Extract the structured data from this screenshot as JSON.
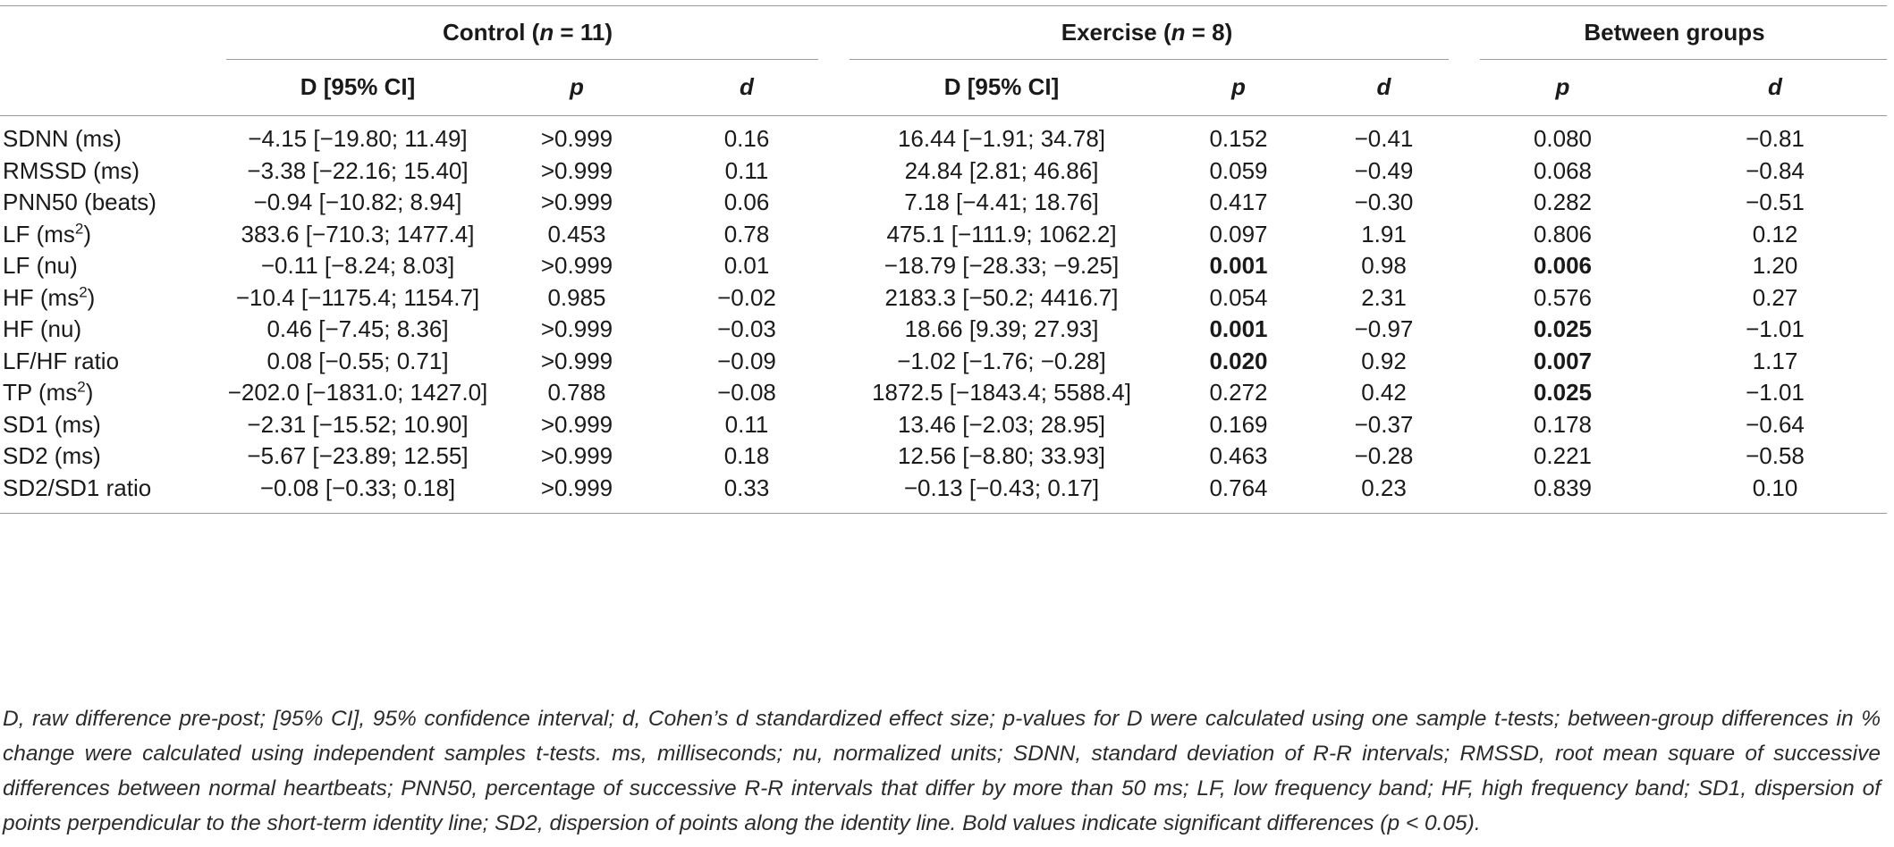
{
  "table": {
    "groups": [
      {
        "label": "Control",
        "n_label": "n",
        "n_value": " = 11"
      },
      {
        "label": "Exercise",
        "n_label": "n",
        "n_value": " = 8"
      },
      {
        "label": "Between groups"
      }
    ],
    "subheaders": {
      "ci": "D [95% CI]",
      "p": "p",
      "d": "d"
    },
    "rows": [
      {
        "label": "SDNN (ms)",
        "label_sup": "",
        "label_suffix": "",
        "ctrl_ci": "−4.15 [−19.80; 11.49]",
        "ctrl_p": ">0.999",
        "ctrl_d": "0.16",
        "ex_ci": "16.44 [−1.91; 34.78]",
        "ex_p": "0.152",
        "ex_d": "−0.41",
        "bg_p": "0.080",
        "bg_d": "−0.81"
      },
      {
        "label": "RMSSD (ms)",
        "label_sup": "",
        "label_suffix": "",
        "ctrl_ci": "−3.38 [−22.16; 15.40]",
        "ctrl_p": ">0.999",
        "ctrl_d": "0.11",
        "ex_ci": "24.84 [2.81; 46.86]",
        "ex_p": "0.059",
        "ex_d": "−0.49",
        "bg_p": "0.068",
        "bg_d": "−0.84"
      },
      {
        "label": "PNN50 (beats)",
        "label_sup": "",
        "label_suffix": "",
        "ctrl_ci": "−0.94 [−10.82; 8.94]",
        "ctrl_p": ">0.999",
        "ctrl_d": "0.06",
        "ex_ci": "7.18 [−4.41; 18.76]",
        "ex_p": "0.417",
        "ex_d": "−0.30",
        "bg_p": "0.282",
        "bg_d": "−0.51"
      },
      {
        "label": "LF (ms",
        "label_sup": "2",
        "label_suffix": ")",
        "ctrl_ci": "383.6 [−710.3; 1477.4]",
        "ctrl_p": "0.453",
        "ctrl_d": "0.78",
        "ex_ci": "475.1 [−111.9; 1062.2]",
        "ex_p": "0.097",
        "ex_d": "1.91",
        "bg_p": "0.806",
        "bg_d": "0.12"
      },
      {
        "label": "LF (nu)",
        "label_sup": "",
        "label_suffix": "",
        "ctrl_ci": "−0.11 [−8.24; 8.03]",
        "ctrl_p": ">0.999",
        "ctrl_d": "0.01",
        "ex_ci": "−18.79 [−28.33; −9.25]",
        "ex_p": "0.001",
        "ex_d": "0.98",
        "bg_p": "0.006",
        "bg_d": "1.20",
        "bold": [
          "ex_p",
          "bg_p"
        ]
      },
      {
        "label": "HF (ms",
        "label_sup": "2",
        "label_suffix": ")",
        "ctrl_ci": "−10.4 [−1175.4; 1154.7]",
        "ctrl_p": "0.985",
        "ctrl_d": "−0.02",
        "ex_ci": "2183.3 [−50.2; 4416.7]",
        "ex_p": "0.054",
        "ex_d": "2.31",
        "bg_p": "0.576",
        "bg_d": "0.27"
      },
      {
        "label": "HF (nu)",
        "label_sup": "",
        "label_suffix": "",
        "ctrl_ci": "0.46 [−7.45; 8.36]",
        "ctrl_p": ">0.999",
        "ctrl_d": "−0.03",
        "ex_ci": "18.66 [9.39; 27.93]",
        "ex_p": "0.001",
        "ex_d": "−0.97",
        "bg_p": "0.025",
        "bg_d": "−1.01",
        "bold": [
          "ex_p",
          "bg_p"
        ]
      },
      {
        "label": "LF/HF ratio",
        "label_sup": "",
        "label_suffix": "",
        "ctrl_ci": "0.08 [−0.55; 0.71]",
        "ctrl_p": ">0.999",
        "ctrl_d": "−0.09",
        "ex_ci": "−1.02 [−1.76; −0.28]",
        "ex_p": "0.020",
        "ex_d": "0.92",
        "bg_p": "0.007",
        "bg_d": "1.17",
        "bold": [
          "ex_p",
          "bg_p"
        ]
      },
      {
        "label": "TP (ms",
        "label_sup": "2",
        "label_suffix": ")",
        "ctrl_ci": "−202.0 [−1831.0; 1427.0]",
        "ctrl_p": "0.788",
        "ctrl_d": "−0.08",
        "ex_ci": "1872.5 [−1843.4; 5588.4]",
        "ex_p": "0.272",
        "ex_d": "0.42",
        "bg_p": "0.025",
        "bg_d": "−1.01",
        "bold": [
          "bg_p"
        ]
      },
      {
        "label": "SD1 (ms)",
        "label_sup": "",
        "label_suffix": "",
        "ctrl_ci": "−2.31 [−15.52; 10.90]",
        "ctrl_p": ">0.999",
        "ctrl_d": "0.11",
        "ex_ci": "13.46 [−2.03; 28.95]",
        "ex_p": "0.169",
        "ex_d": "−0.37",
        "bg_p": "0.178",
        "bg_d": "−0.64"
      },
      {
        "label": "SD2 (ms)",
        "label_sup": "",
        "label_suffix": "",
        "ctrl_ci": "−5.67 [−23.89; 12.55]",
        "ctrl_p": ">0.999",
        "ctrl_d": "0.18",
        "ex_ci": "12.56 [−8.80; 33.93]",
        "ex_p": "0.463",
        "ex_d": "−0.28",
        "bg_p": "0.221",
        "bg_d": "−0.58"
      },
      {
        "label": "SD2/SD1 ratio",
        "label_sup": "",
        "label_suffix": "",
        "ctrl_ci": "−0.08 [−0.33; 0.18]",
        "ctrl_p": ">0.999",
        "ctrl_d": "0.33",
        "ex_ci": "−0.13 [−0.43; 0.17]",
        "ex_p": "0.764",
        "ex_d": "0.23",
        "bg_p": "0.839",
        "bg_d": "0.10"
      }
    ]
  },
  "footnote": "D, raw difference pre-post; [95% CI], 95% confidence interval; d, Cohen’s d standardized effect size; p-values for D were calculated using one sample t-tests; between-group differences in % change were calculated using independent samples t-tests. ms, milliseconds; nu, normalized units; SDNN, standard deviation of R-R intervals; RMSSD, root mean square of successive differences between normal heartbeats; PNN50, percentage of successive R-R intervals that differ by more than 50 ms; LF, low frequency band; HF, high frequency band; SD1, dispersion of points perpendicular to the short-term identity line; SD2, dispersion of points along the identity line. Bold values indicate significant differences (p < 0.05)."
}
